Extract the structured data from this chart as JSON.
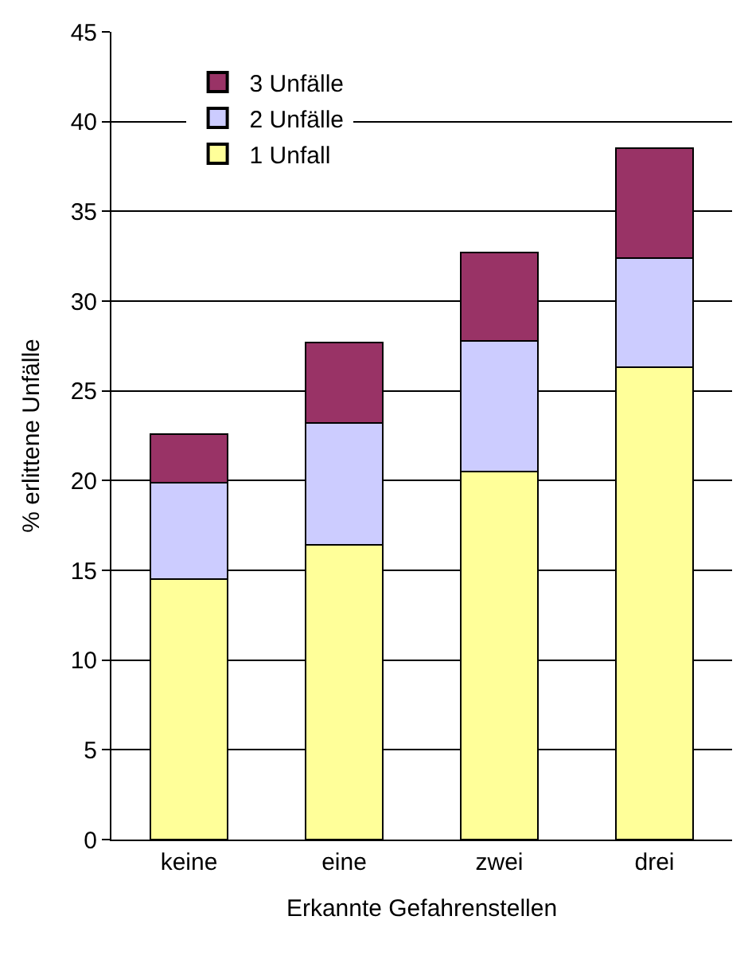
{
  "chart_data": {
    "type": "bar",
    "stacked": true,
    "xlabel": "Erkannte Gefahrenstellen",
    "ylabel": "% erlittene Unfälle",
    "categories": [
      "keine",
      "eine",
      "zwei",
      "drei"
    ],
    "series": [
      {
        "name": "1 Unfall",
        "color": "#ffff99",
        "values": [
          14.5,
          16.4,
          20.5,
          26.3
        ]
      },
      {
        "name": "2 Unfälle",
        "color": "#ccccff",
        "values": [
          5.4,
          6.8,
          7.3,
          6.1
        ]
      },
      {
        "name": "3 Unfälle",
        "color": "#993366",
        "values": [
          2.7,
          4.5,
          4.9,
          6.1
        ]
      }
    ],
    "ylim": [
      0,
      45
    ],
    "yticks": [
      0,
      5,
      10,
      15,
      20,
      25,
      30,
      35,
      40,
      45
    ],
    "grid": "y",
    "legend": "top left"
  }
}
